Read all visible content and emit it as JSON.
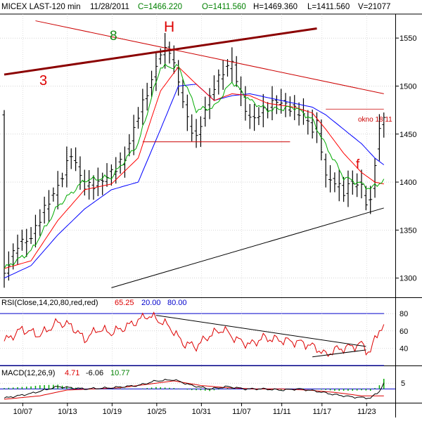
{
  "header": {
    "symbol": "MICEX LAST-120 min",
    "date": "11/28/2011",
    "close": "C=1466.220",
    "open": "O=1411.560",
    "high": "H=1469.360",
    "low": "L=1411.560",
    "volume": "V=21077"
  },
  "annotations": {
    "pattern_label": "H",
    "wave_label": "8",
    "line_label": "3",
    "f_label": "f",
    "window_label": "okno 18.11"
  },
  "colors": {
    "price_bars": "#000000",
    "ma_fast": "#00aa00",
    "ma_mid": "#ff0000",
    "ma_slow": "#0000ff",
    "trendline_thick": "#8b0000",
    "resistance_line": "#cc0000",
    "support_line": "#000000",
    "rsi": "#dd0000",
    "macd": "#000000",
    "macd_signal": "#dd0000",
    "histogram": "#00aa00",
    "separator": "#0000cc"
  },
  "chart_data": [
    {
      "type": "ohlc",
      "title": "MICEX LAST-120 min",
      "ylim": [
        1280,
        1575
      ],
      "y_ticks": [
        "1550",
        "1500",
        "1450",
        "1400",
        "1350",
        "1300"
      ],
      "x_ticks": [
        "10/07",
        "10/13",
        "10/19",
        "10/25",
        "10/31",
        "11/07",
        "11/11",
        "11/17",
        "11/23"
      ],
      "x_tick_index": [
        1,
        11,
        21,
        31,
        41,
        50,
        59,
        68,
        78
      ],
      "num_bars": 86,
      "close_path": [
        [
          0,
          1305
        ],
        [
          3,
          1335
        ],
        [
          6,
          1342
        ],
        [
          9,
          1372
        ],
        [
          12,
          1395
        ],
        [
          15,
          1430
        ],
        [
          18,
          1395
        ],
        [
          21,
          1398
        ],
        [
          24,
          1410
        ],
        [
          27,
          1425
        ],
        [
          30,
          1470
        ],
        [
          33,
          1505
        ],
        [
          35,
          1535
        ],
        [
          37,
          1538
        ],
        [
          39,
          1505
        ],
        [
          41,
          1465
        ],
        [
          43,
          1445
        ],
        [
          45,
          1475
        ],
        [
          47,
          1500
        ],
        [
          49,
          1515
        ],
        [
          51,
          1525
        ],
        [
          53,
          1490
        ],
        [
          55,
          1465
        ],
        [
          57,
          1470
        ],
        [
          59,
          1478
        ],
        [
          61,
          1485
        ],
        [
          63,
          1480
        ],
        [
          65,
          1475
        ],
        [
          67,
          1470
        ],
        [
          69,
          1455
        ],
        [
          70,
          1460
        ],
        [
          71,
          1435
        ],
        [
          72,
          1405
        ],
        [
          74,
          1400
        ],
        [
          76,
          1390
        ],
        [
          78,
          1400
        ],
        [
          80,
          1395
        ],
        [
          81,
          1380
        ],
        [
          82,
          1378
        ],
        [
          83,
          1420
        ],
        [
          84,
          1455
        ],
        [
          85,
          1466
        ]
      ],
      "ma_fast_path": [
        [
          0,
          1310
        ],
        [
          6,
          1328
        ],
        [
          12,
          1375
        ],
        [
          18,
          1402
        ],
        [
          24,
          1405
        ],
        [
          30,
          1440
        ],
        [
          35,
          1520
        ],
        [
          39,
          1520
        ],
        [
          43,
          1475
        ],
        [
          47,
          1478
        ],
        [
          51,
          1505
        ],
        [
          55,
          1485
        ],
        [
          59,
          1475
        ],
        [
          65,
          1478
        ],
        [
          69,
          1465
        ],
        [
          72,
          1438
        ],
        [
          76,
          1405
        ],
        [
          80,
          1398
        ],
        [
          82,
          1393
        ],
        [
          85,
          1402
        ]
      ],
      "ma_mid_path": [
        [
          0,
          1310
        ],
        [
          6,
          1318
        ],
        [
          12,
          1360
        ],
        [
          18,
          1392
        ],
        [
          24,
          1398
        ],
        [
          30,
          1425
        ],
        [
          35,
          1495
        ],
        [
          39,
          1520
        ],
        [
          43,
          1502
        ],
        [
          47,
          1485
        ],
        [
          51,
          1492
        ],
        [
          55,
          1490
        ],
        [
          59,
          1482
        ],
        [
          65,
          1478
        ],
        [
          69,
          1472
        ],
        [
          72,
          1455
        ],
        [
          76,
          1430
        ],
        [
          80,
          1410
        ],
        [
          83,
          1400
        ],
        [
          85,
          1398
        ]
      ],
      "ma_slow_path": [
        [
          0,
          1300
        ],
        [
          6,
          1313
        ],
        [
          12,
          1345
        ],
        [
          18,
          1372
        ],
        [
          24,
          1392
        ],
        [
          30,
          1400
        ],
        [
          35,
          1455
        ],
        [
          39,
          1500
        ],
        [
          43,
          1502
        ],
        [
          47,
          1485
        ],
        [
          51,
          1490
        ],
        [
          55,
          1492
        ],
        [
          59,
          1488
        ],
        [
          65,
          1482
        ],
        [
          69,
          1478
        ],
        [
          72,
          1470
        ],
        [
          76,
          1455
        ],
        [
          80,
          1440
        ],
        [
          83,
          1425
        ],
        [
          85,
          1418
        ]
      ],
      "trend_thick": [
        [
          0,
          1512
        ],
        [
          70,
          1560
        ]
      ],
      "resistance": [
        [
          7,
          1568
        ],
        [
          85,
          1492
        ]
      ],
      "neckline": [
        [
          31,
          1442
        ],
        [
          64,
          1442
        ]
      ],
      "support": [
        [
          24,
          1290
        ],
        [
          85,
          1373
        ]
      ],
      "window_line": [
        [
          72,
          1476
        ],
        [
          85,
          1476
        ]
      ]
    },
    {
      "type": "line",
      "title": "RSI(Close,14,20,80,red,red)",
      "legend": [
        "65.25",
        "20.00",
        "80.00"
      ],
      "ylim": [
        20,
        85
      ],
      "y_ticks": [
        "80",
        "60",
        "40"
      ],
      "levels": [
        20,
        80
      ],
      "rsi_path": [
        [
          0,
          48
        ],
        [
          4,
          62
        ],
        [
          8,
          55
        ],
        [
          12,
          70
        ],
        [
          15,
          66
        ],
        [
          18,
          50
        ],
        [
          21,
          62
        ],
        [
          24,
          58
        ],
        [
          27,
          64
        ],
        [
          30,
          72
        ],
        [
          32,
          78
        ],
        [
          34,
          74
        ],
        [
          37,
          65
        ],
        [
          40,
          46
        ],
        [
          43,
          42
        ],
        [
          46,
          55
        ],
        [
          49,
          62
        ],
        [
          52,
          50
        ],
        [
          55,
          44
        ],
        [
          58,
          52
        ],
        [
          61,
          50
        ],
        [
          64,
          48
        ],
        [
          67,
          46
        ],
        [
          70,
          40
        ],
        [
          72,
          32
        ],
        [
          74,
          38
        ],
        [
          76,
          40
        ],
        [
          78,
          42
        ],
        [
          80,
          45
        ],
        [
          81,
          38
        ],
        [
          82,
          36
        ],
        [
          83,
          50
        ],
        [
          84,
          62
        ],
        [
          85,
          65
        ]
      ],
      "trend_down": [
        [
          34,
          78
        ],
        [
          81,
          42
        ]
      ],
      "trend_up": [
        [
          69,
          30
        ],
        [
          81,
          38
        ]
      ]
    },
    {
      "type": "line",
      "title": "MACD(12,26,9)",
      "legend": [
        "4.71",
        "-6.06",
        "10.77"
      ],
      "ylim": [
        -12,
        10
      ],
      "y_ticks": [
        "5"
      ],
      "macd_path": [
        [
          0,
          -8
        ],
        [
          6,
          -4
        ],
        [
          12,
          2
        ],
        [
          18,
          0
        ],
        [
          24,
          1
        ],
        [
          30,
          3
        ],
        [
          34,
          7
        ],
        [
          38,
          8
        ],
        [
          42,
          3
        ],
        [
          46,
          0
        ],
        [
          50,
          2
        ],
        [
          54,
          0
        ],
        [
          58,
          0
        ],
        [
          62,
          -1
        ],
        [
          66,
          0
        ],
        [
          70,
          -2
        ],
        [
          74,
          -5
        ],
        [
          78,
          -7
        ],
        [
          82,
          -8
        ],
        [
          84,
          -2
        ],
        [
          85,
          5
        ]
      ],
      "signal_path": [
        [
          0,
          -9
        ],
        [
          8,
          -6
        ],
        [
          14,
          -1
        ],
        [
          20,
          0
        ],
        [
          26,
          1
        ],
        [
          32,
          4
        ],
        [
          38,
          7
        ],
        [
          44,
          3
        ],
        [
          50,
          1
        ],
        [
          56,
          0
        ],
        [
          62,
          0
        ],
        [
          68,
          -1
        ],
        [
          74,
          -3
        ],
        [
          80,
          -6
        ],
        [
          85,
          -6
        ]
      ]
    }
  ]
}
